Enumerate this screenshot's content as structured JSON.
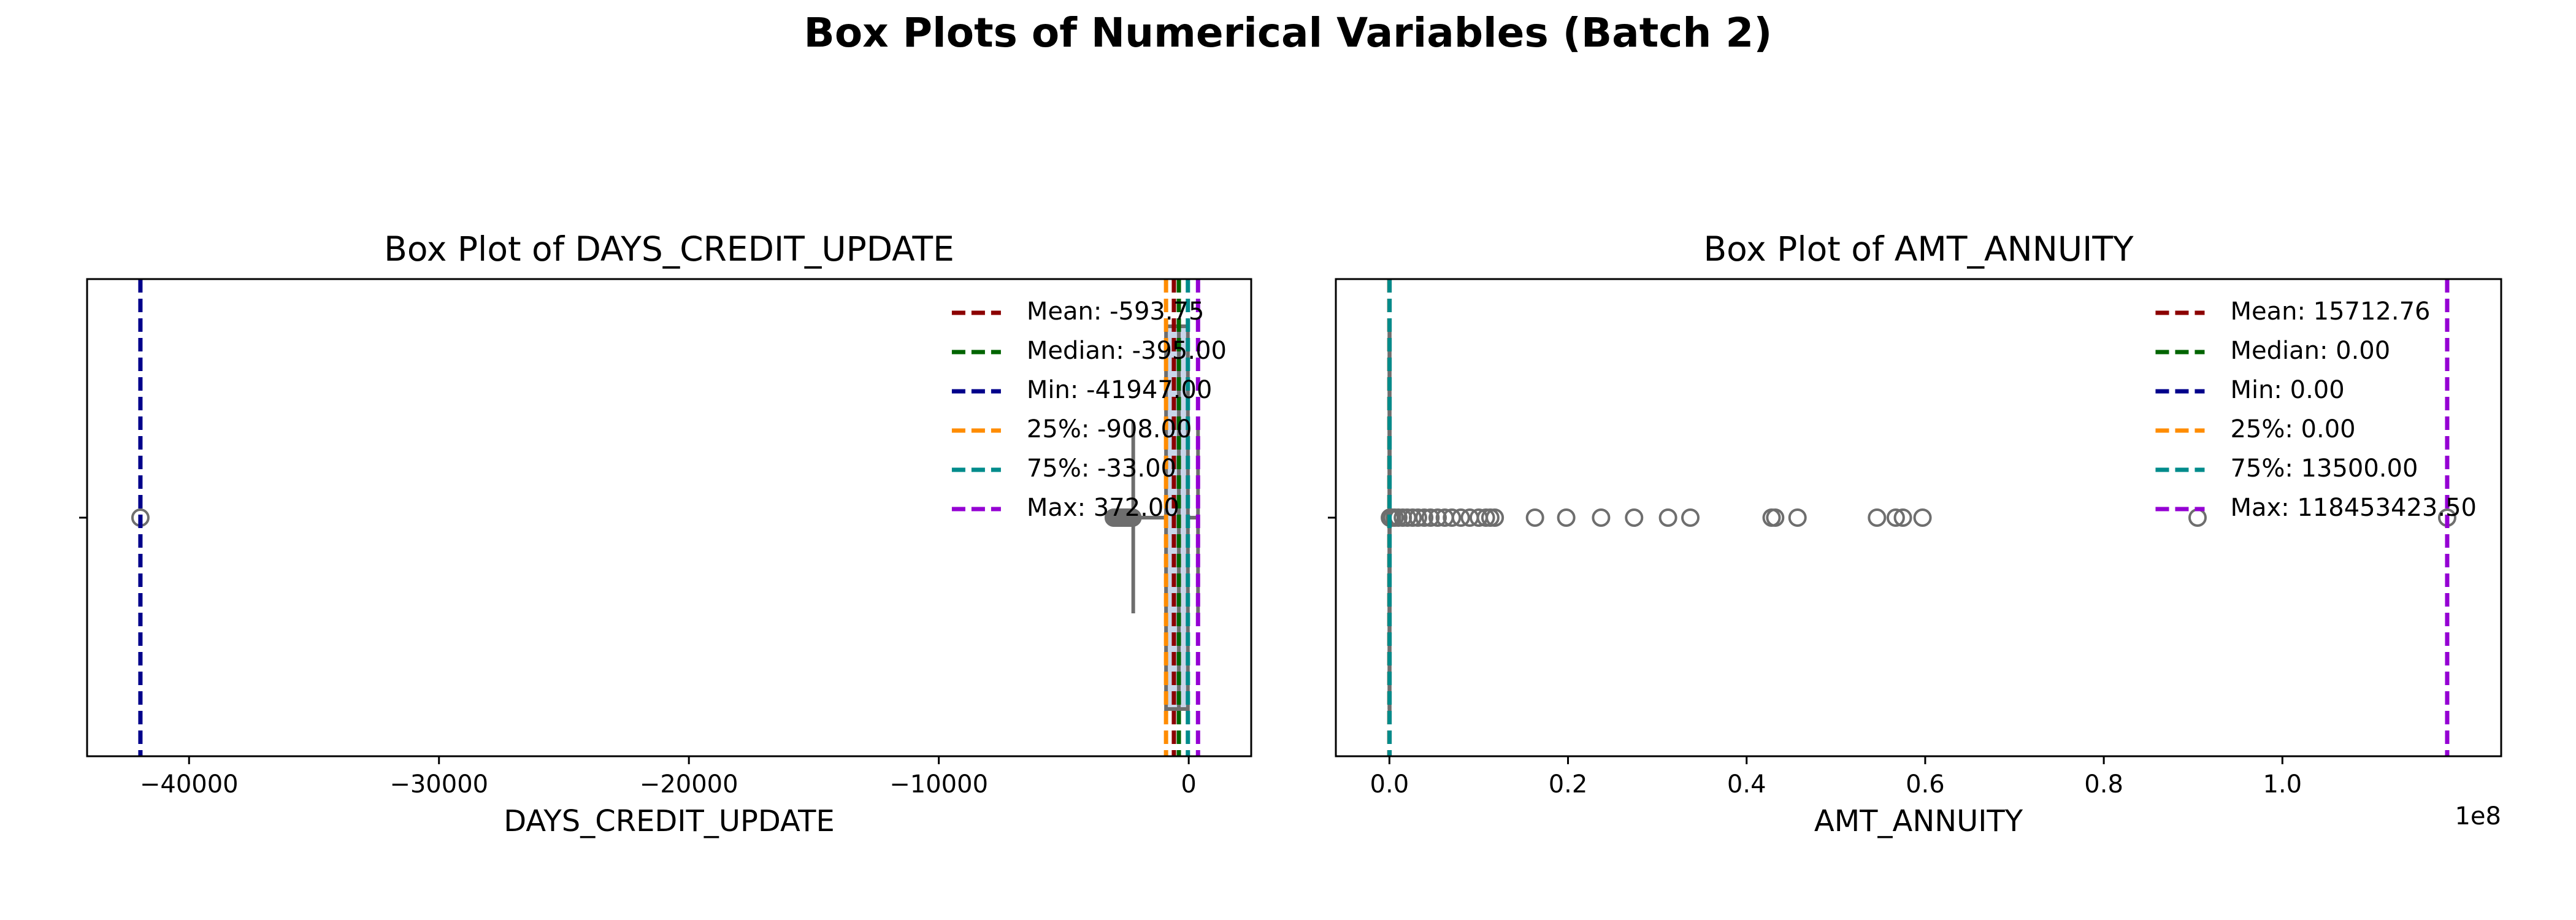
{
  "title": "Box Plots of Numerical Variables (Batch 2)",
  "chart_data": [
    {
      "type": "box",
      "title": "Box Plot of DAYS_CREDIT_UPDATE",
      "xlabel": "DAYS_CREDIT_UPDATE",
      "xlim": [
        -44080,
        2500
      ],
      "xticks": [
        {
          "value": -40000,
          "label": "−40000"
        },
        {
          "value": -30000,
          "label": "−30000"
        },
        {
          "value": -20000,
          "label": "−20000"
        },
        {
          "value": -10000,
          "label": "−10000"
        },
        0
      ],
      "box": {
        "whislo": -2220,
        "q1": -908,
        "median": -395,
        "q3": -33,
        "whishi": 372
      },
      "box_color": "#6e6e6e",
      "outliers": [
        -41947,
        -3000,
        -2950,
        -2900,
        -2850,
        -2800,
        -2750,
        -2700,
        -2650,
        -2600,
        -2550,
        -2500,
        -2450,
        -2400,
        -2350,
        -2300,
        -2250
      ],
      "lines": [
        {
          "name": "Mean: -593.75",
          "value": -593.75,
          "color": "#8b0000"
        },
        {
          "name": "Median: -395.00",
          "value": -395,
          "color": "#006400"
        },
        {
          "name": "Min: -41947.00",
          "value": -41947,
          "color": "#00008b"
        },
        {
          "name": "25%: -908.00",
          "value": -908,
          "color": "#ff8c00"
        },
        {
          "name": "75%: -33.00",
          "value": -33,
          "color": "#008b8b"
        },
        {
          "name": "Max: 372.00",
          "value": 372,
          "color": "#9400d3"
        }
      ],
      "legend": "upper right"
    },
    {
      "type": "box",
      "title": "Box Plot of AMT_ANNUITY",
      "xlabel": "AMT_ANNUITY",
      "xlim": [
        -6000000,
        124500000
      ],
      "xticks": [
        {
          "value": 0,
          "label": "0.0"
        },
        {
          "value": 20000000,
          "label": "0.2"
        },
        {
          "value": 40000000,
          "label": "0.4"
        },
        {
          "value": 60000000,
          "label": "0.6"
        },
        {
          "value": 80000000,
          "label": "0.8"
        },
        {
          "value": 100000000,
          "label": "1.0"
        }
      ],
      "offset_text": "1e8",
      "box": {
        "whislo": 0,
        "q1": 0,
        "median": 0,
        "q3": 13500,
        "whishi": 33750
      },
      "box_color": "#6e6e6e",
      "outliers": [
        50000,
        300000,
        600000,
        1000000,
        1500000,
        2000000,
        2600000,
        3200000,
        3900000,
        4600000,
        5400000,
        6200000,
        7000000,
        8000000,
        9000000,
        10000000,
        10800000,
        11300000,
        11800000,
        16300000,
        19800000,
        23700000,
        27400000,
        31200000,
        33700000,
        42800000,
        43200000,
        45700000,
        54600000,
        56700000,
        57500000,
        59700000,
        90500000,
        118453423.5
      ],
      "lines": [
        {
          "name": "Mean: 15712.76",
          "value": 15712.76,
          "color": "#8b0000"
        },
        {
          "name": "Median: 0.00",
          "value": 0,
          "color": "#006400"
        },
        {
          "name": "Min: 0.00",
          "value": 0,
          "color": "#00008b"
        },
        {
          "name": "25%: 0.00",
          "value": 0,
          "color": "#ff8c00"
        },
        {
          "name": "75%: 13500.00",
          "value": 13500,
          "color": "#008b8b"
        },
        {
          "name": "Max: 118453423.50",
          "value": 118453423.5,
          "color": "#9400d3"
        }
      ],
      "legend": "upper right"
    }
  ]
}
